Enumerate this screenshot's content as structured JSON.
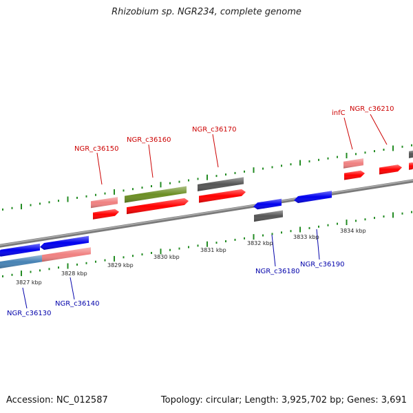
{
  "title": "Rhizobium sp. NGR234, complete genome",
  "footer": {
    "accession": "Accession: NC_012587",
    "stats": "Topology: circular; Length: 3,925,702 bp; Genes: 3,691"
  },
  "colors": {
    "backbone": "#888888",
    "ticks": "#228B22",
    "plus_label": "#cc0000",
    "minus_label": "#0000aa",
    "red": "#ff0000",
    "pink": "#f08080",
    "green": "#6b8e23",
    "gray": "#555555",
    "blue": "#0000ee",
    "steelblue": "#4682b4"
  },
  "scale_labels": [
    "3827 kbp",
    "3828 kbp",
    "3829 kbp",
    "3830 kbp",
    "3831 kbp",
    "3832 kbp",
    "3833 kbp",
    "3834 kbp"
  ],
  "gene_labels_plus": [
    "NGR_c36150",
    "NGR_c36160",
    "NGR_c36170",
    "infC",
    "NGR_c36210"
  ],
  "gene_labels_minus": [
    "NGR_c36130",
    "NGR_c36140",
    "NGR_c36180",
    "NGR_c36190"
  ]
}
